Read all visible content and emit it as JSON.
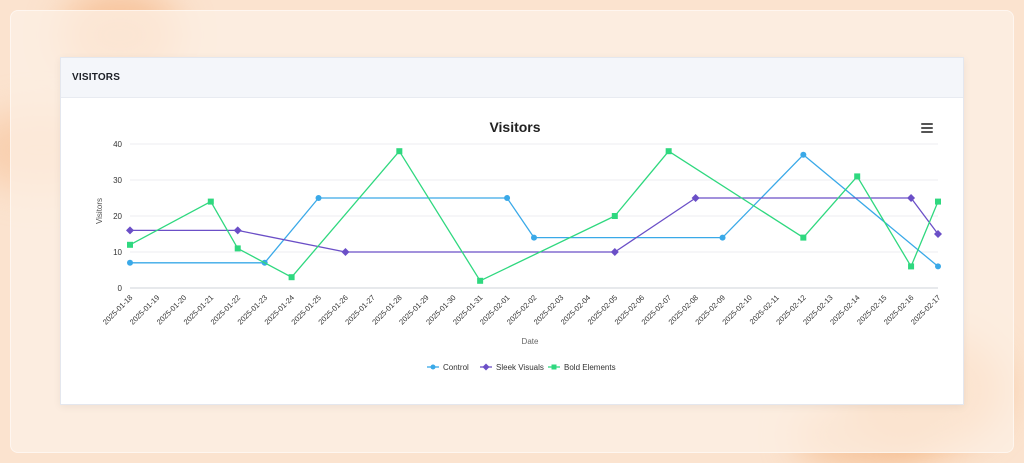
{
  "card": {
    "title": "VISITORS"
  },
  "chart_data": {
    "type": "line",
    "title": "Visitors",
    "xlabel": "Date",
    "ylabel": "Visitors",
    "ylim": [
      0,
      40
    ],
    "yticks": [
      0,
      10,
      20,
      30,
      40
    ],
    "grid": true,
    "legend": "bottom",
    "categories": [
      "2025-01-18",
      "2025-01-19",
      "2025-01-20",
      "2025-01-21",
      "2025-01-22",
      "2025-01-23",
      "2025-01-24",
      "2025-01-25",
      "2025-01-26",
      "2025-01-27",
      "2025-01-28",
      "2025-01-29",
      "2025-01-30",
      "2025-01-31",
      "2025-02-01",
      "2025-02-02",
      "2025-02-03",
      "2025-02-04",
      "2025-02-05",
      "2025-02-06",
      "2025-02-07",
      "2025-02-08",
      "2025-02-09",
      "2025-02-10",
      "2025-02-11",
      "2025-02-12",
      "2025-02-13",
      "2025-02-14",
      "2025-02-15",
      "2025-02-16",
      "2025-02-17"
    ],
    "series": [
      {
        "name": "Control",
        "color": "#3aa9e8",
        "marker": "circle",
        "points": [
          {
            "x": "2025-01-18",
            "y": 7
          },
          {
            "x": "2025-01-23",
            "y": 7
          },
          {
            "x": "2025-01-25",
            "y": 25
          },
          {
            "x": "2025-02-01",
            "y": 25
          },
          {
            "x": "2025-02-02",
            "y": 14
          },
          {
            "x": "2025-02-09",
            "y": 14
          },
          {
            "x": "2025-02-12",
            "y": 37
          },
          {
            "x": "2025-02-17",
            "y": 6
          }
        ]
      },
      {
        "name": "Sleek Visuals",
        "color": "#6b4fc7",
        "marker": "diamond",
        "points": [
          {
            "x": "2025-01-18",
            "y": 16
          },
          {
            "x": "2025-01-22",
            "y": 16
          },
          {
            "x": "2025-01-26",
            "y": 10
          },
          {
            "x": "2025-02-05",
            "y": 10
          },
          {
            "x": "2025-02-08",
            "y": 25
          },
          {
            "x": "2025-02-16",
            "y": 25
          },
          {
            "x": "2025-02-17",
            "y": 15
          }
        ]
      },
      {
        "name": "Bold Elements",
        "color": "#2fd87f",
        "marker": "square",
        "points": [
          {
            "x": "2025-01-18",
            "y": 12
          },
          {
            "x": "2025-01-21",
            "y": 24
          },
          {
            "x": "2025-01-22",
            "y": 11
          },
          {
            "x": "2025-01-24",
            "y": 3
          },
          {
            "x": "2025-01-28",
            "y": 38
          },
          {
            "x": "2025-01-31",
            "y": 2
          },
          {
            "x": "2025-02-05",
            "y": 20
          },
          {
            "x": "2025-02-07",
            "y": 38
          },
          {
            "x": "2025-02-12",
            "y": 14
          },
          {
            "x": "2025-02-14",
            "y": 31
          },
          {
            "x": "2025-02-16",
            "y": 6
          },
          {
            "x": "2025-02-17",
            "y": 24
          }
        ]
      }
    ]
  },
  "icons": {
    "menu": "hamburger-menu-icon"
  }
}
